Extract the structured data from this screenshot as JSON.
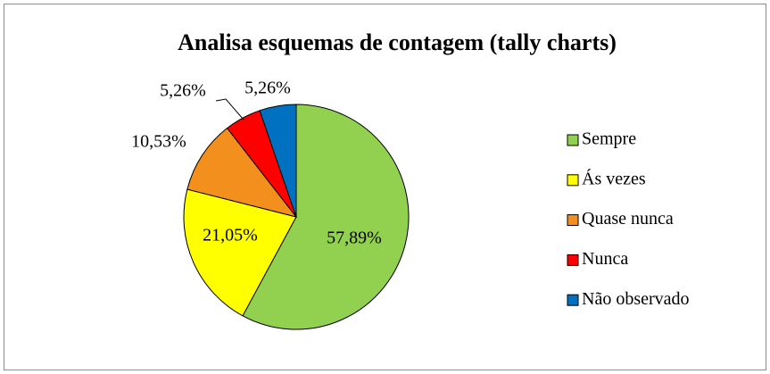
{
  "chart_data": {
    "type": "pie",
    "title": "Analisa esquemas de contagem (tally charts)",
    "categories": [
      "Sempre",
      "Ás vezes",
      "Quase nunca",
      "Nunca",
      "Não observado"
    ],
    "values": [
      57.89,
      21.05,
      10.53,
      5.26,
      5.26
    ],
    "value_labels": [
      "57,89%",
      "21,05%",
      "10,53%",
      "5,26%",
      "5,26%"
    ],
    "colors": [
      "#92d050",
      "#ffff00",
      "#f38f1c",
      "#ff0000",
      "#0070c0"
    ],
    "legend": "right"
  }
}
